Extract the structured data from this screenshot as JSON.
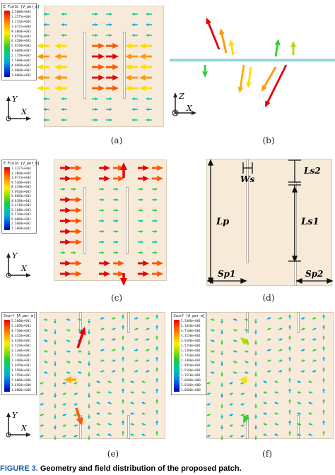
{
  "panels": {
    "a": {
      "label": "(a)",
      "legend_title": "E Field [V_per_m]",
      "legend_values": [
        "1.5000e+004",
        "1.3575e+004",
        "1.2150e+004",
        "1.0725e+004",
        "9.3000e+003",
        "7.8750e+003",
        "6.4500e+003",
        "5.0250e+003",
        "3.6000e+003",
        "2.1750e+003",
        "7.5000e+002",
        "4.0000e+002",
        "2.0000e+002",
        "1.0000e+002"
      ]
    },
    "b": {
      "label": "(b)"
    },
    "c": {
      "label": "(c)",
      "legend_title": "E Field [V_per_m]",
      "legend_values": [
        "1.3227e+004",
        "1.2000e+004",
        "1.0773e+004",
        "9.5460e+003",
        "8.3190e+003",
        "7.0920e+003",
        "5.8650e+003",
        "4.6380e+003",
        "3.4110e+003",
        "2.1840e+003",
        "9.5700e+002",
        "5.0000e+002",
        "2.5000e+002",
        "1.1000e+002"
      ]
    },
    "d": {
      "label": "(d)"
    },
    "e": {
      "label": "(e)",
      "legend_title": "Jsurf [A_per_m]",
      "legend_values": [
        "5.5000e+001",
        "5.1050e+001",
        "4.7100e+001",
        "4.3150e+001",
        "3.9200e+001",
        "3.5250e+001",
        "3.1300e+001",
        "2.7350e+001",
        "2.3400e+001",
        "1.9450e+001",
        "1.5500e+001",
        "1.1550e+001",
        "7.6000e+000",
        "3.6500e+000",
        "1.0000e+000"
      ]
    },
    "f": {
      "label": "(f)",
      "legend_title": "Jsurf [A_per_m]",
      "legend_values": [
        "5.5000e+001",
        "5.1050e+001",
        "4.7100e+001",
        "4.3150e+001",
        "3.9200e+001",
        "3.5250e+001",
        "3.1300e+001",
        "2.7350e+001",
        "2.3400e+001",
        "1.9450e+001",
        "1.5500e+001",
        "1.1550e+001",
        "7.6000e+000",
        "3.6500e+000",
        "1.0000e+000"
      ]
    }
  },
  "axes": {
    "y": "Y",
    "x": "X",
    "z": "Z"
  },
  "dimensions": {
    "ws": "Ws",
    "ls2": "Ls2",
    "lp": "Lp",
    "ls1": "Ls1",
    "sp1": "Sp1",
    "sp2": "Sp2"
  },
  "figure_caption": {
    "label": "FIGURE 3.",
    "text": "Geometry and field distribution of the proposed patch."
  }
}
